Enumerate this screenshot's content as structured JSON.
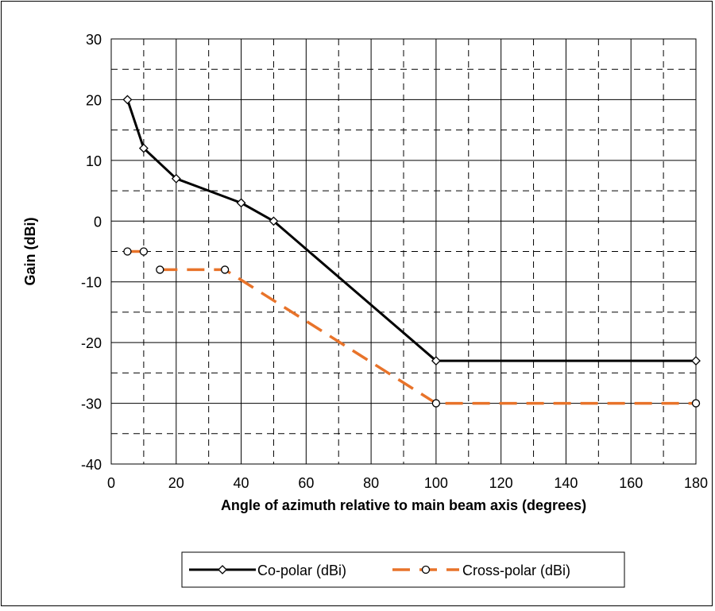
{
  "chart_data": {
    "type": "line",
    "title": "",
    "xlabel": "Angle of azimuth relative to main beam axis (degrees)",
    "ylabel": "Gain (dBi)",
    "xlim": [
      0,
      180
    ],
    "ylim": [
      -40,
      30
    ],
    "x_ticks": [
      0,
      20,
      40,
      60,
      80,
      100,
      120,
      140,
      160,
      180
    ],
    "y_ticks": [
      30,
      20,
      10,
      0,
      -10,
      -20,
      -30,
      -40
    ],
    "x_tick_labels": [
      "0",
      "20",
      "40",
      "60",
      "80",
      "100",
      "120",
      "140",
      "160",
      "180"
    ],
    "y_tick_labels": [
      "30",
      "20",
      "10",
      "0",
      "-10",
      "-20",
      "-30",
      "-40"
    ],
    "grid": true,
    "legend_position": "bottom",
    "series": [
      {
        "name": "Co-polar (dBi)",
        "color": "#000000",
        "line_style": "solid",
        "marker": "diamond",
        "segments": [
          [
            [
              5,
              20
            ],
            [
              10,
              12
            ],
            [
              20,
              7
            ],
            [
              40,
              3
            ],
            [
              50,
              0
            ],
            [
              100,
              -23
            ],
            [
              180,
              -23
            ]
          ]
        ]
      },
      {
        "name": "Cross-polar (dBi)",
        "color": "#E8732A",
        "line_style": "dashed",
        "marker": "circle",
        "segments": [
          [
            [
              5,
              -5
            ],
            [
              10,
              -5
            ]
          ],
          [
            [
              15,
              -8
            ],
            [
              35,
              -8
            ],
            [
              100,
              -30
            ],
            [
              180,
              -30
            ]
          ]
        ]
      }
    ]
  }
}
